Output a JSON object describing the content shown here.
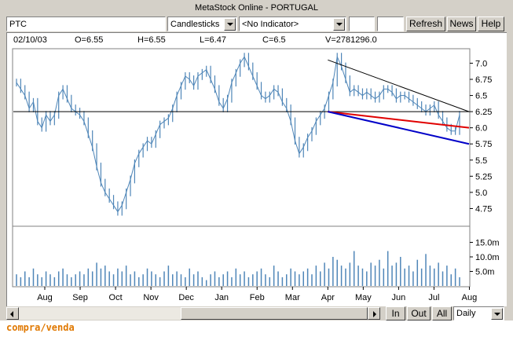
{
  "window": {
    "title": "MetaStock Online - PORTUGAL"
  },
  "toolbar": {
    "symbol": "PTC",
    "chart_type": "Candlesticks",
    "indicator": "<No Indicator>",
    "refresh_label": "Refresh",
    "news_label": "News",
    "help_label": "Help"
  },
  "quote": {
    "date": "02/10/03",
    "open": "O=6.55",
    "high": "H=6.55",
    "low": "L=6.47",
    "close": "C=6.5",
    "volume": "V=2781296.0"
  },
  "bottom_bar": {
    "in_label": "In",
    "out_label": "Out",
    "all_label": "All",
    "period": "Daily"
  },
  "footer_text": "compra/venda",
  "colors": {
    "price": "#4f86b8",
    "resistance": "#000000",
    "red_trend": "#e00000",
    "blue_trend": "#0000c8",
    "horizontal": "#000000"
  },
  "chart_data": {
    "type": "candlestick",
    "price_axis": {
      "ticks": [
        "7.0",
        "6.75",
        "6.5",
        "6.25",
        "6.0",
        "5.75",
        "5.5",
        "5.25",
        "5.0",
        "4.75"
      ],
      "ylim": [
        4.5,
        7.2
      ]
    },
    "volume_axis": {
      "ticks": [
        "15.0m",
        "10.0m",
        "5.0m"
      ],
      "ylim": [
        0,
        20
      ]
    },
    "months": [
      "Aug",
      "Sep",
      "Oct",
      "Nov",
      "Dec",
      "Jan",
      "Feb",
      "Mar",
      "Apr",
      "May",
      "Jun",
      "Jul",
      "Aug"
    ],
    "close_series": [
      6.7,
      6.6,
      6.5,
      6.3,
      6.4,
      6.1,
      6.0,
      6.2,
      6.1,
      6.2,
      6.5,
      6.6,
      6.45,
      6.3,
      6.25,
      6.2,
      6.1,
      5.9,
      5.7,
      5.4,
      5.15,
      5.0,
      4.9,
      4.8,
      4.7,
      4.8,
      5.0,
      5.2,
      5.45,
      5.6,
      5.7,
      5.8,
      5.75,
      5.9,
      6.05,
      6.1,
      6.15,
      6.3,
      6.5,
      6.65,
      6.8,
      6.75,
      6.65,
      6.8,
      6.85,
      6.9,
      6.75,
      6.6,
      6.4,
      6.3,
      6.45,
      6.7,
      6.85,
      7.0,
      7.1,
      6.95,
      6.8,
      6.65,
      6.5,
      6.45,
      6.5,
      6.6,
      6.55,
      6.4,
      6.3,
      6.1,
      5.8,
      5.6,
      5.7,
      5.85,
      5.95,
      6.1,
      6.2,
      6.3,
      6.5,
      6.7,
      7.1,
      6.95,
      6.75,
      6.55,
      6.6,
      6.55,
      6.5,
      6.55,
      6.5,
      6.45,
      6.5,
      6.6,
      6.6,
      6.55,
      6.45,
      6.5,
      6.5,
      6.45,
      6.4,
      6.35,
      6.3,
      6.25,
      6.3,
      6.35,
      6.2,
      6.1,
      6.0,
      5.95,
      5.95,
      6.2
    ],
    "volume_series": [
      4,
      3,
      5,
      3,
      6,
      4,
      3,
      5,
      4,
      3,
      5,
      6,
      4,
      3,
      4,
      5,
      4,
      6,
      5,
      8,
      6,
      7,
      5,
      4,
      6,
      5,
      7,
      4,
      5,
      3,
      4,
      6,
      5,
      4,
      3,
      5,
      7,
      4,
      5,
      4,
      3,
      6,
      4,
      5,
      3,
      2,
      4,
      5,
      3,
      4,
      5,
      3,
      6,
      4,
      5,
      3,
      4,
      5,
      6,
      4,
      3,
      7,
      5,
      3,
      4,
      6,
      5,
      4,
      5,
      6,
      4,
      7,
      5,
      8,
      6,
      10,
      9,
      7,
      6,
      8,
      12,
      7,
      6,
      5,
      8,
      7,
      9,
      6,
      12,
      7,
      8,
      10,
      6,
      7,
      5,
      9,
      6,
      11,
      7,
      6,
      8,
      5,
      7,
      4,
      6,
      3
    ],
    "horizontal_line": 6.25,
    "trendlines": [
      {
        "name": "resistance",
        "from": [
          "Apr",
          7.05
        ],
        "to": [
          "Aug",
          6.25
        ]
      },
      {
        "name": "red",
        "from": [
          "Apr",
          6.25
        ],
        "to": [
          "Aug",
          6.0
        ]
      },
      {
        "name": "blue",
        "from": [
          "Apr",
          6.25
        ],
        "to": [
          "Aug",
          5.75
        ]
      }
    ]
  }
}
